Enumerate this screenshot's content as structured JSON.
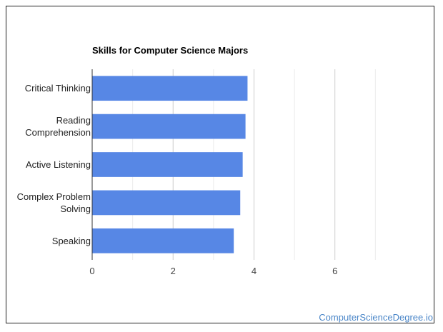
{
  "chart_data": {
    "type": "bar",
    "orientation": "horizontal",
    "title": "Skills for Computer Science Majors",
    "categories": [
      [
        "Critical Thinking"
      ],
      [
        "Reading",
        "Comprehension"
      ],
      [
        "Active Listening"
      ],
      [
        "Complex Problem",
        "Solving"
      ],
      [
        "Speaking"
      ]
    ],
    "values": [
      3.84,
      3.79,
      3.72,
      3.66,
      3.5
    ],
    "xlim": [
      0,
      7.4
    ],
    "xticks": [
      0,
      2,
      4,
      6
    ],
    "xtick_labels": [
      "0",
      "2",
      "4",
      "6"
    ],
    "grid": true,
    "bar_color": "#5787e5",
    "xlabel": "",
    "ylabel": ""
  },
  "credit": "ComputerScienceDegree.io",
  "colors": {
    "credit": "#4a86c8",
    "grid": "#cccccc",
    "axis": "#333333"
  }
}
